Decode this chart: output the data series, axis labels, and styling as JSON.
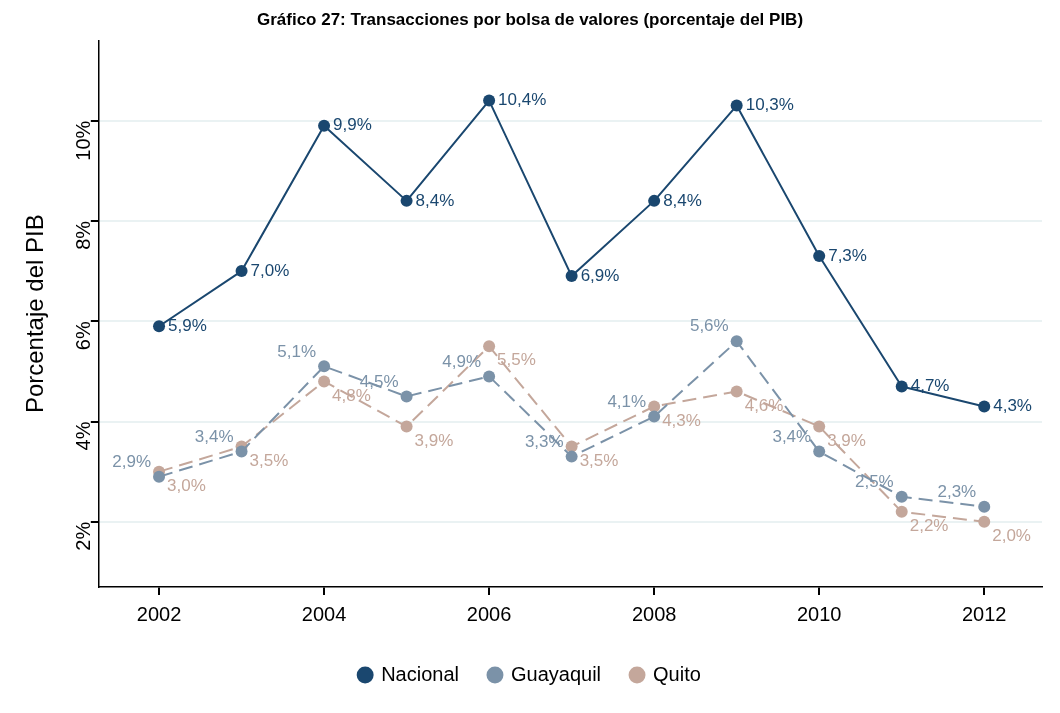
{
  "chart_data": {
    "type": "line",
    "title": "Gráfico 27: Transacciones por bolsa de valores (porcentaje del PIB)",
    "ylabel": "Porcentaje del PIB",
    "x": [
      2002,
      2003,
      2004,
      2005,
      2006,
      2007,
      2008,
      2009,
      2010,
      2011,
      2012
    ],
    "xlim": [
      2001.27,
      2012.7
    ],
    "xticks": [
      2002,
      2004,
      2006,
      2008,
      2010,
      2012
    ],
    "ylim": [
      0.7,
      11.6
    ],
    "yticks": [
      {
        "value": 2,
        "label": "2%"
      },
      {
        "value": 4,
        "label": "4%"
      },
      {
        "value": 6,
        "label": "6%"
      },
      {
        "value": 8,
        "label": "8%"
      },
      {
        "value": 10,
        "label": "10%"
      }
    ],
    "grid": "y",
    "legend": "bottom",
    "marker": "circle",
    "series": [
      {
        "name": "Nacional",
        "color": "#1a476f",
        "line_style": "solid",
        "values": [
          5.9,
          7.0,
          9.9,
          8.4,
          10.4,
          6.9,
          8.4,
          10.3,
          7.3,
          4.7,
          4.3
        ],
        "value_labels": [
          "5,9%",
          "7,0%",
          "9,9%",
          "8,4%",
          "10,4%",
          "6,9%",
          "8,4%",
          "10,3%",
          "7,3%",
          "4,7%",
          "4,3%"
        ]
      },
      {
        "name": "Guayaquil",
        "color": "#7b92a8",
        "line_style": "dashed",
        "values": [
          2.9,
          3.4,
          5.1,
          4.5,
          4.9,
          3.3,
          4.1,
          5.6,
          3.4,
          2.5,
          2.3
        ],
        "value_labels": [
          "2,9%",
          "3,4%",
          "5,1%",
          "4,5%",
          "4,9%",
          "3,3%",
          "4,1%",
          "5,6%",
          "3,4%",
          "2,5%",
          "2,3%"
        ]
      },
      {
        "name": "Quito",
        "color": "#c4a79b",
        "line_style": "dashed",
        "values": [
          3.0,
          3.5,
          4.8,
          3.9,
          5.5,
          3.5,
          4.3,
          4.6,
          3.9,
          2.2,
          2.0
        ],
        "value_labels": [
          "3,0%",
          "3,5%",
          "4,8%",
          "3,9%",
          "5,5%",
          "3,5%",
          "4,3%",
          "4,6%",
          "3,9%",
          "2,2%",
          "2,0%"
        ]
      }
    ]
  }
}
